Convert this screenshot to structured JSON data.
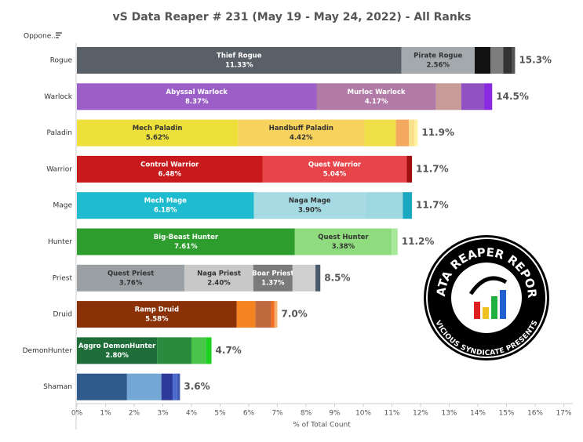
{
  "chart_data": {
    "type": "stacked-bar-horizontal",
    "title": "vS Data Reaper # 231 (May 19 - May 24, 2022) - All Ranks",
    "category_header": "Oppone..",
    "x_label": "% of Total Count",
    "xlim": [
      0,
      17.2
    ],
    "xticks": [
      {
        "value": 0,
        "label": "0%"
      },
      {
        "value": 1,
        "label": "1%"
      },
      {
        "value": 2,
        "label": "2%"
      },
      {
        "value": 3,
        "label": "3%"
      },
      {
        "value": 4,
        "label": "4%"
      },
      {
        "value": 5,
        "label": "5%"
      },
      {
        "value": 6,
        "label": "6%"
      },
      {
        "value": 7,
        "label": "7%"
      },
      {
        "value": 8,
        "label": "8%"
      },
      {
        "value": 9,
        "label": "9%"
      },
      {
        "value": 10,
        "label": "10%"
      },
      {
        "value": 11,
        "label": "11%"
      },
      {
        "value": 12,
        "label": "12%"
      },
      {
        "value": 13,
        "label": "13%"
      },
      {
        "value": 14,
        "label": "14%"
      },
      {
        "value": 15,
        "label": "15%"
      },
      {
        "value": 16,
        "label": "16%"
      },
      {
        "value": 17,
        "label": "17%"
      }
    ],
    "rows": [
      {
        "category": "Rogue",
        "total": 15.3,
        "total_label": "15.3%",
        "segments": [
          {
            "name": "Thief Rogue",
            "value": 11.33,
            "value_label": "11.33%",
            "color": "#5a6068"
          },
          {
            "name": "Pirate Rogue",
            "value": 2.56,
            "value_label": "2.56%",
            "color": "#a4a9ad"
          },
          {
            "value": 0.55,
            "color": "#111111"
          },
          {
            "value": 0.45,
            "color": "#7d7d7d"
          },
          {
            "value": 0.3,
            "color": "#333333"
          },
          {
            "value": 0.11,
            "color": "#555555"
          }
        ]
      },
      {
        "category": "Warlock",
        "total": 14.5,
        "total_label": "14.5%",
        "segments": [
          {
            "name": "Abyssal Warlock",
            "value": 8.37,
            "value_label": "8.37%",
            "color": "#9b5fc7"
          },
          {
            "name": "Murloc Warlock",
            "value": 4.17,
            "value_label": "4.17%",
            "color": "#b27aa6"
          },
          {
            "value": 0.88,
            "color": "#c89a98"
          },
          {
            "value": 0.8,
            "color": "#9251c0"
          },
          {
            "value": 0.28,
            "color": "#8a2be2"
          }
        ]
      },
      {
        "category": "Paladin",
        "total": 11.9,
        "total_label": "11.9%",
        "segments": [
          {
            "name": "Mech Paladin",
            "value": 5.62,
            "value_label": "5.62%",
            "color": "#ede03a"
          },
          {
            "name": "Handbuff Paladin",
            "value": 4.42,
            "value_label": "4.42%",
            "color": "#f7d35e"
          },
          {
            "value": 1.1,
            "color": "#efe04a"
          },
          {
            "value": 0.45,
            "color": "#f5a860"
          },
          {
            "value": 0.2,
            "color": "#f9e08a"
          },
          {
            "value": 0.11,
            "color": "#fff3a0"
          }
        ]
      },
      {
        "category": "Warrior",
        "total": 11.7,
        "total_label": "11.7%",
        "segments": [
          {
            "name": "Control Warrior",
            "value": 6.48,
            "value_label": "6.48%",
            "color": "#c8191c"
          },
          {
            "name": "Quest Warrior",
            "value": 5.04,
            "value_label": "5.04%",
            "color": "#e8454a"
          },
          {
            "value": 0.18,
            "color": "#a01010"
          }
        ]
      },
      {
        "category": "Mage",
        "total": 11.7,
        "total_label": "11.7%",
        "segments": [
          {
            "name": "Mech Mage",
            "value": 6.18,
            "value_label": "6.18%",
            "color": "#1fbcd0"
          },
          {
            "name": "Naga Mage",
            "value": 3.9,
            "value_label": "3.90%",
            "color": "#a6dbe4"
          },
          {
            "value": 1.3,
            "color": "#a0d8e2"
          },
          {
            "value": 0.32,
            "color": "#1aa7c0"
          }
        ]
      },
      {
        "category": "Hunter",
        "total": 11.2,
        "total_label": "11.2%",
        "segments": [
          {
            "name": "Big-Beast Hunter",
            "value": 7.61,
            "value_label": "7.61%",
            "color": "#2d9e2d"
          },
          {
            "name": "Quest Hunter",
            "value": 3.38,
            "value_label": "3.38%",
            "color": "#8fdc7f"
          },
          {
            "value": 0.21,
            "color": "#a8e89a"
          }
        ]
      },
      {
        "category": "Priest",
        "total": 8.5,
        "total_label": "8.5%",
        "segments": [
          {
            "name": "Quest Priest",
            "value": 3.76,
            "value_label": "3.76%",
            "color": "#9aa0a4"
          },
          {
            "name": "Naga Priest",
            "value": 2.4,
            "value_label": "2.40%",
            "color": "#c8c8c8"
          },
          {
            "name": "Boar Priest",
            "value": 1.37,
            "value_label": "1.37%",
            "color": "#7a7a7a"
          },
          {
            "value": 0.8,
            "color": "#cfcfcf"
          },
          {
            "value": 0.17,
            "color": "#4a5a6a"
          }
        ]
      },
      {
        "category": "Druid",
        "total": 7.0,
        "total_label": "7.0%",
        "segments": [
          {
            "name": "Ramp Druid",
            "value": 5.58,
            "value_label": "5.58%",
            "color": "#8b3108"
          },
          {
            "value": 0.65,
            "color": "#f5831f"
          },
          {
            "value": 0.55,
            "color": "#c06a40"
          },
          {
            "value": 0.12,
            "color": "#f07020"
          },
          {
            "value": 0.1,
            "color": "#f5b070"
          }
        ]
      },
      {
        "category": "DemonHunter",
        "total": 4.7,
        "total_label": "4.7%",
        "segments": [
          {
            "name": "Aggro DemonHunter",
            "value": 2.8,
            "value_label": "2.80%",
            "color": "#1f6e3a"
          },
          {
            "value": 1.2,
            "color": "#2a8a3d"
          },
          {
            "value": 0.5,
            "color": "#4bc44b"
          },
          {
            "value": 0.2,
            "color": "#1ed11e"
          }
        ]
      },
      {
        "category": "Shaman",
        "total": 3.6,
        "total_label": "3.6%",
        "segments": [
          {
            "value": 1.75,
            "color": "#2f5b8c"
          },
          {
            "value": 1.2,
            "color": "#74a7d4"
          },
          {
            "value": 0.4,
            "color": "#2d3a9a"
          },
          {
            "value": 0.15,
            "color": "#4a6ad0"
          },
          {
            "value": 0.1,
            "color": "#3d5ab0"
          }
        ]
      }
    ]
  },
  "logo": {
    "title": "DATA REAPER REPORT",
    "subtitle": "VICIOUS SYNDICATE PRESENTS"
  }
}
